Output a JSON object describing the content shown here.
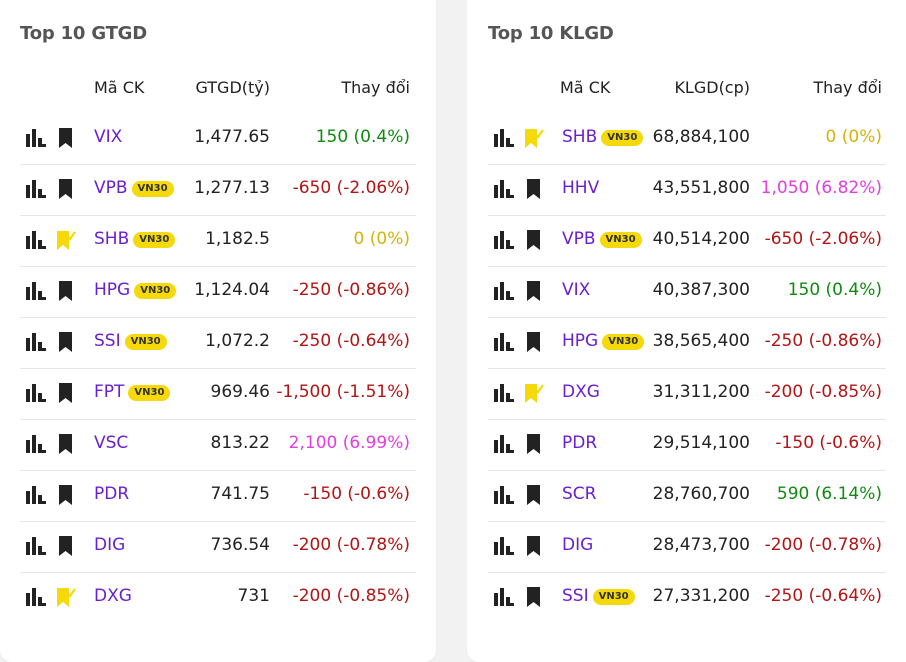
{
  "left": {
    "title": "Top 10 GTGD",
    "headers": {
      "symbol": "Mã CK",
      "value": "GTGD(tỷ)",
      "change": "Thay đổi"
    },
    "rows": [
      {
        "symbol": "VIX",
        "badge": "",
        "bookmarked": false,
        "value": "1,477.65",
        "change": "150 (0.4%)",
        "trend": "up"
      },
      {
        "symbol": "VPB",
        "badge": "VN30",
        "bookmarked": false,
        "value": "1,277.13",
        "change": "-650 (-2.06%)",
        "trend": "down"
      },
      {
        "symbol": "SHB",
        "badge": "VN30",
        "bookmarked": true,
        "value": "1,182.5",
        "change": "0 (0%)",
        "trend": "ref"
      },
      {
        "symbol": "HPG",
        "badge": "VN30",
        "bookmarked": false,
        "value": "1,124.04",
        "change": "-250 (-0.86%)",
        "trend": "down"
      },
      {
        "symbol": "SSI",
        "badge": "VN30",
        "bookmarked": false,
        "value": "1,072.2",
        "change": "-250 (-0.64%)",
        "trend": "down"
      },
      {
        "symbol": "FPT",
        "badge": "VN30",
        "bookmarked": false,
        "value": "969.46",
        "change": "-1,500 (-1.51%)",
        "trend": "down"
      },
      {
        "symbol": "VSC",
        "badge": "",
        "bookmarked": false,
        "value": "813.22",
        "change": "2,100 (6.99%)",
        "trend": "ceil"
      },
      {
        "symbol": "PDR",
        "badge": "",
        "bookmarked": false,
        "value": "741.75",
        "change": "-150 (-0.6%)",
        "trend": "down"
      },
      {
        "symbol": "DIG",
        "badge": "",
        "bookmarked": false,
        "value": "736.54",
        "change": "-200 (-0.78%)",
        "trend": "down"
      },
      {
        "symbol": "DXG",
        "badge": "",
        "bookmarked": true,
        "value": "731",
        "change": "-200 (-0.85%)",
        "trend": "down"
      }
    ]
  },
  "right": {
    "title": "Top 10 KLGD",
    "headers": {
      "symbol": "Mã CK",
      "value": "KLGD(cp)",
      "change": "Thay đổi"
    },
    "rows": [
      {
        "symbol": "SHB",
        "badge": "VN30",
        "bookmarked": true,
        "value": "68,884,100",
        "change": "0 (0%)",
        "trend": "ref"
      },
      {
        "symbol": "HHV",
        "badge": "",
        "bookmarked": false,
        "value": "43,551,800",
        "change": "1,050 (6.82%)",
        "trend": "ceil"
      },
      {
        "symbol": "VPB",
        "badge": "VN30",
        "bookmarked": false,
        "value": "40,514,200",
        "change": "-650 (-2.06%)",
        "trend": "down"
      },
      {
        "symbol": "VIX",
        "badge": "",
        "bookmarked": false,
        "value": "40,387,300",
        "change": "150 (0.4%)",
        "trend": "up"
      },
      {
        "symbol": "HPG",
        "badge": "VN30",
        "bookmarked": false,
        "value": "38,565,400",
        "change": "-250 (-0.86%)",
        "trend": "down"
      },
      {
        "symbol": "DXG",
        "badge": "",
        "bookmarked": true,
        "value": "31,311,200",
        "change": "-200 (-0.85%)",
        "trend": "down"
      },
      {
        "symbol": "PDR",
        "badge": "",
        "bookmarked": false,
        "value": "29,514,100",
        "change": "-150 (-0.6%)",
        "trend": "down"
      },
      {
        "symbol": "SCR",
        "badge": "",
        "bookmarked": false,
        "value": "28,760,700",
        "change": "590 (6.14%)",
        "trend": "up"
      },
      {
        "symbol": "DIG",
        "badge": "",
        "bookmarked": false,
        "value": "28,473,700",
        "change": "-200 (-0.78%)",
        "trend": "down"
      },
      {
        "symbol": "SSI",
        "badge": "VN30",
        "bookmarked": false,
        "value": "27,331,200",
        "change": "-250 (-0.64%)",
        "trend": "down"
      }
    ]
  },
  "icons": {
    "chart": "bar-chart-icon",
    "bookmark": "bookmark-icon",
    "bookmark_checked": "bookmark-checked-icon"
  },
  "colors": {
    "symbol": "#6a1fd0",
    "up": "#128a12",
    "down": "#b31414",
    "ref": "#d4b30b",
    "ceil": "#e23ee0",
    "badge": "#f5d90a",
    "bookmark_active": "#f5d90a"
  }
}
